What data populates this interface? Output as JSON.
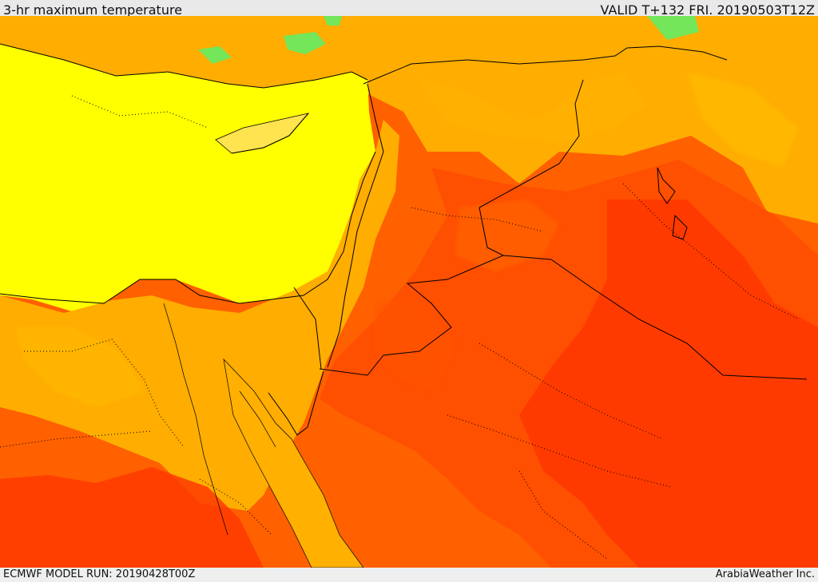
{
  "header": {
    "title": "3-hr maximum temperature",
    "valid": "VALID T+132 FRI. 20190503T12Z"
  },
  "footer": {
    "model_run": "ECMWF MODEL RUN: 20190428T00Z",
    "credit": "ArabiaWeather Inc."
  },
  "colors": {
    "sea_yellow": "#ffff00",
    "light_green": "#73e65a",
    "pale_orange": "#ffd000",
    "orange": "#ffad00",
    "deep_orange": "#ff7a00",
    "red_orange": "#ff4f00",
    "red": "#ff2a00",
    "border": "#000000"
  }
}
